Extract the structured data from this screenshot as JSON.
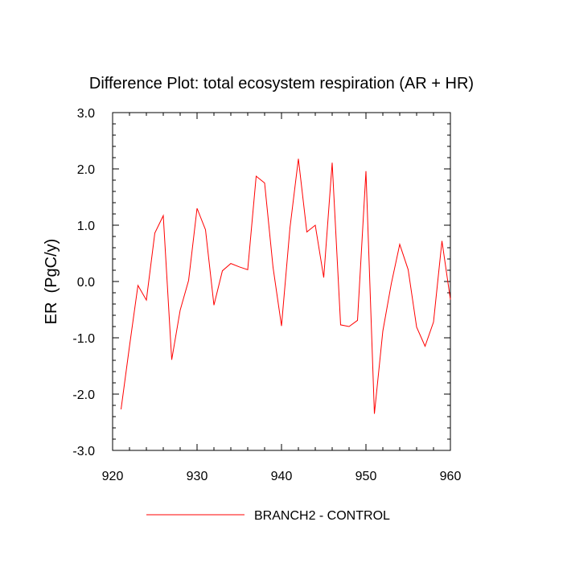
{
  "chart_data": {
    "type": "line",
    "title": "Difference Plot: total ecosystem respiration (AR + HR)",
    "xlabel": "",
    "ylabel": "ER  (PgC/y)",
    "xlim": [
      920,
      960
    ],
    "ylim": [
      -3.0,
      3.0
    ],
    "x_ticks": [
      920,
      930,
      940,
      950,
      960
    ],
    "x_tick_labels": [
      "920",
      "930",
      "940",
      "950",
      "960"
    ],
    "y_ticks": [
      -3.0,
      -2.0,
      -1.0,
      0.0,
      1.0,
      2.0,
      3.0
    ],
    "y_tick_labels": [
      "-3.0",
      "-2.0",
      "-1.0",
      "0.0",
      "1.0",
      "2.0",
      "3.0"
    ],
    "grid": false,
    "legend_position": "bottom-center",
    "series": [
      {
        "name": "BRANCH2 - CONTROL",
        "color": "#ff0000",
        "x": [
          921,
          922,
          923,
          924,
          925,
          926,
          927,
          928,
          929,
          930,
          931,
          932,
          933,
          934,
          935,
          936,
          937,
          938,
          939,
          940,
          941,
          942,
          943,
          944,
          945,
          946,
          947,
          948,
          949,
          950,
          951,
          952,
          953,
          954,
          955,
          956,
          957,
          958,
          959,
          960
        ],
        "y": [
          -2.27,
          -1.15,
          -0.07,
          -0.33,
          0.86,
          1.17,
          -1.39,
          -0.51,
          0.02,
          1.3,
          0.92,
          -0.42,
          0.19,
          0.32,
          0.26,
          0.21,
          1.87,
          1.75,
          0.25,
          -0.79,
          0.95,
          2.18,
          0.88,
          1.0,
          0.07,
          2.11,
          -0.77,
          -0.8,
          -0.69,
          1.96,
          -2.35,
          -0.88,
          -0.04,
          0.66,
          0.21,
          -0.81,
          -1.15,
          -0.72,
          0.72,
          -0.32
        ]
      }
    ]
  }
}
